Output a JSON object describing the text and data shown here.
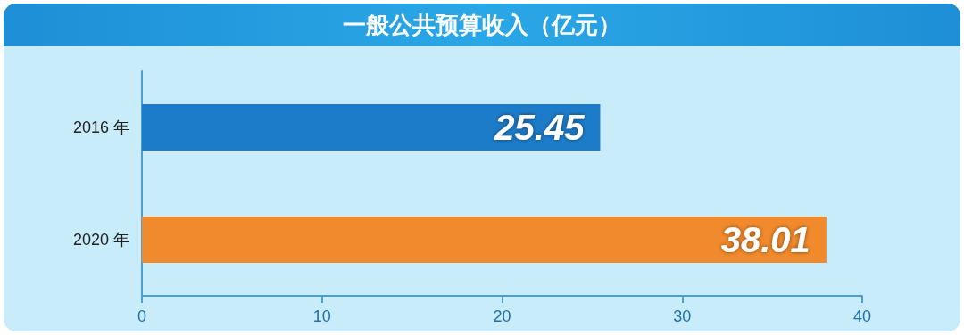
{
  "chart_data": {
    "type": "bar",
    "orientation": "horizontal",
    "title": "一般公共预算收入（亿元）",
    "categories": [
      "2016 年",
      "2020 年"
    ],
    "values": [
      25.45,
      38.01
    ],
    "colors": [
      "#1d7cc9",
      "#f08a2c"
    ],
    "xlim": [
      0,
      40
    ],
    "xticks": [
      0,
      10,
      20,
      30,
      40
    ],
    "grid": false,
    "data_labels": true
  }
}
